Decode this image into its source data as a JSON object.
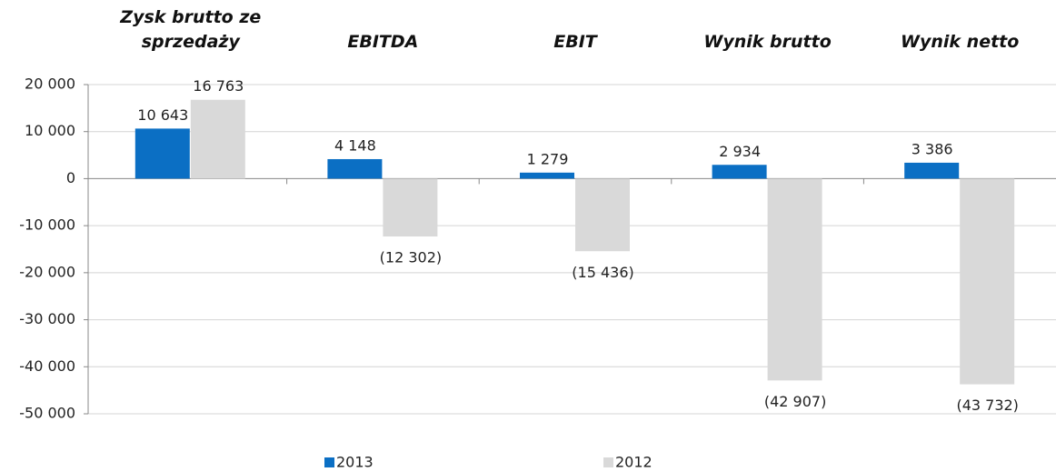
{
  "chart_data": {
    "type": "bar",
    "categories": [
      "Zysk brutto ze sprzedaży",
      "EBITDA",
      "EBIT",
      "Wynik brutto",
      "Wynik netto"
    ],
    "series": [
      {
        "name": "2013",
        "color": "#0b6fc4",
        "values": [
          10643,
          4148,
          1279,
          2934,
          3386
        ],
        "value_labels": [
          "10 643",
          "4 148",
          "1 279",
          "2 934",
          "3 386"
        ]
      },
      {
        "name": "2012",
        "color": "#d9d9d9",
        "values": [
          16763,
          -12302,
          -15436,
          -42907,
          -43732
        ],
        "value_labels": [
          "16 763",
          "(12 302)",
          "(15 436)",
          "(42 907)",
          "(43 732)"
        ]
      }
    ],
    "ylim": [
      -50000,
      20000
    ],
    "yticks": [
      {
        "value": 20000,
        "label": "20 000"
      },
      {
        "value": 10000,
        "label": "10 000"
      },
      0,
      {
        "value": -10000,
        "label": "-10 000"
      },
      {
        "value": -20000,
        "label": "-20 000"
      },
      {
        "value": -30000,
        "label": "-30 000"
      },
      {
        "value": -40000,
        "label": "-40 000"
      },
      {
        "value": -50000,
        "label": "-50 000"
      }
    ],
    "grid": true,
    "legend": "bottom"
  }
}
